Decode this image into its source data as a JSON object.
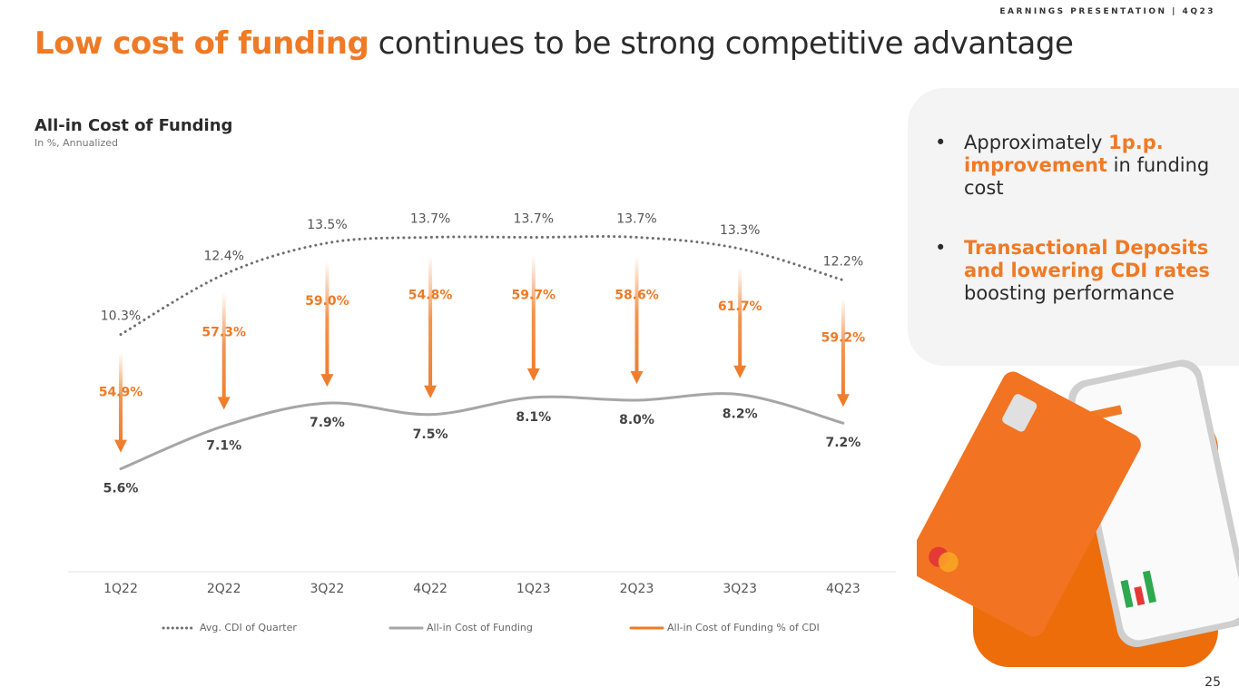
{
  "header": "EARNINGS PRESENTATION | 4Q23",
  "title": {
    "highlight": "Low cost of funding",
    "rest": "continues to be strong competitive advantage"
  },
  "bullets": [
    [
      {
        "text": "Approximately ",
        "emphasis": false
      },
      {
        "text": "1p.p. improvement",
        "emphasis": true
      },
      {
        "text": " in funding cost",
        "emphasis": false
      }
    ],
    [
      {
        "text": "Transactional Deposits and lowering CDI rates",
        "emphasis": true
      },
      {
        "text": " boosting performance",
        "emphasis": false
      }
    ]
  ],
  "page_number": 25,
  "chart_data": {
    "type": "line",
    "title": "All-in Cost of Funding",
    "subtitle": "In %, Annualized",
    "categories": [
      "1Q22",
      "2Q22",
      "3Q22",
      "4Q22",
      "1Q23",
      "2Q23",
      "3Q23",
      "4Q23"
    ],
    "ylim": [
      2,
      16
    ],
    "series": [
      {
        "name": "Avg. CDI of Quarter",
        "color": "#6e6e6e",
        "style": "dotted",
        "values": [
          10.3,
          12.4,
          13.5,
          13.7,
          13.7,
          13.7,
          13.3,
          12.2
        ],
        "value_labels": [
          "10.3%",
          "12.4%",
          "13.5%",
          "13.7%",
          "13.7%",
          "13.7%",
          "13.3%",
          "12.2%"
        ]
      },
      {
        "name": "All-in Cost of Funding",
        "color": "#a6a6a6",
        "style": "solid",
        "values": [
          5.6,
          7.1,
          7.9,
          7.5,
          8.1,
          8.0,
          8.2,
          7.2
        ],
        "value_labels": [
          "5.6%",
          "7.1%",
          "7.9%",
          "7.5%",
          "8.1%",
          "8.0%",
          "8.2%",
          "7.2%"
        ]
      },
      {
        "name": "All-in Cost of Funding % of CDI",
        "color": "#ef7a26",
        "style": "arrow",
        "values": [
          54.9,
          57.3,
          59.0,
          54.8,
          59.7,
          58.6,
          61.7,
          59.2
        ],
        "value_labels": [
          "54.9%",
          "57.3%",
          "59.0%",
          "54.8%",
          "59.7%",
          "58.6%",
          "61.7%",
          "59.2%"
        ]
      }
    ]
  }
}
